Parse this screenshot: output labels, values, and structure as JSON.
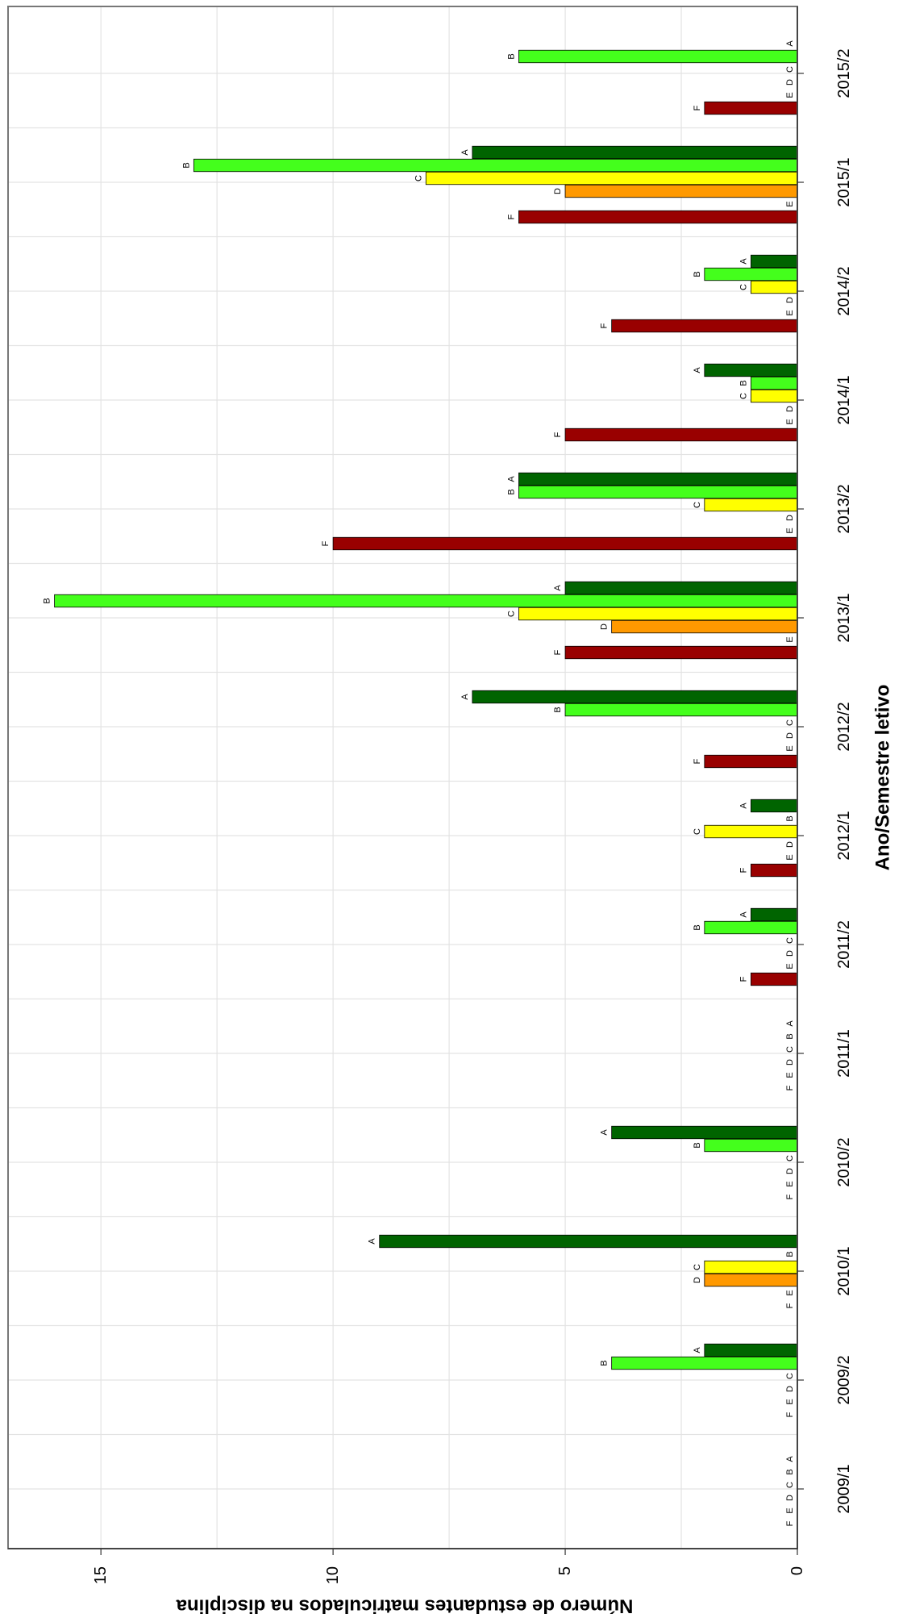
{
  "chart_data": {
    "type": "bar",
    "orientation": "horizontal",
    "xlabel": "Ano/Semestre letivo",
    "ylabel": "Número de estudantes matriculados na disciplina",
    "ylim": [
      0,
      17
    ],
    "y_ticks": [
      0,
      5,
      10,
      15
    ],
    "grid": true,
    "legend": "none",
    "categories": [
      "2009/1",
      "2009/2",
      "2010/1",
      "2010/2",
      "2011/1",
      "2011/2",
      "2012/1",
      "2012/2",
      "2013/1",
      "2013/2",
      "2014/1",
      "2014/2",
      "2015/1",
      "2015/2"
    ],
    "series": [
      {
        "name": "A",
        "color": "#006400",
        "values": [
          0,
          2,
          9,
          4,
          0,
          1,
          1,
          7,
          5,
          6,
          2,
          1,
          7,
          0
        ]
      },
      {
        "name": "B",
        "color": "#44ff1c",
        "values": [
          0,
          4,
          0,
          2,
          0,
          2,
          0,
          5,
          16,
          6,
          1,
          2,
          13,
          6
        ]
      },
      {
        "name": "C",
        "color": "#ffff00",
        "values": [
          0,
          0,
          2,
          0,
          0,
          0,
          2,
          0,
          6,
          2,
          1,
          1,
          8,
          0
        ]
      },
      {
        "name": "D",
        "color": "#ff9900",
        "values": [
          0,
          0,
          2,
          0,
          0,
          0,
          0,
          0,
          4,
          0,
          0,
          0,
          5,
          0
        ]
      },
      {
        "name": "E",
        "color": "#ff5a00",
        "values": [
          0,
          0,
          0,
          0,
          0,
          0,
          0,
          0,
          0,
          0,
          0,
          0,
          0,
          0
        ]
      },
      {
        "name": "F",
        "color": "#990000",
        "values": [
          0,
          0,
          0,
          0,
          0,
          1,
          1,
          2,
          5,
          10,
          5,
          4,
          6,
          2
        ]
      }
    ]
  }
}
